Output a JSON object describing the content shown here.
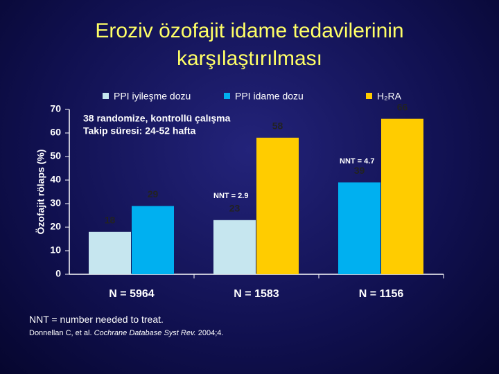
{
  "chart_data": {
    "type": "bar",
    "title_lines": [
      "Eroziv özofajit idame tedavilerinin",
      "karşılaştırılması"
    ],
    "y_label": "Özofajit rölaps (%)",
    "categories": [
      "N = 5964",
      "N = 1583",
      "N = 1156"
    ],
    "series": [
      {
        "name": "PPI iyileşme dozu",
        "color": "#c6e6ef",
        "values": [
          18,
          23,
          null
        ]
      },
      {
        "name": "PPI idame dozu",
        "color": "#00b0f0",
        "values": [
          29,
          null,
          39
        ]
      },
      {
        "name": "H₂RA",
        "color": "#ffcc00",
        "values": [
          null,
          58,
          66
        ]
      }
    ],
    "ylim": [
      0,
      70
    ],
    "yticks": [
      0,
      10,
      20,
      30,
      40,
      50,
      60,
      70
    ],
    "annotations": [
      "38 randomize, kontrollü çalışma",
      "Takip süresi: 24-52 hafta",
      "NNT = 2.9",
      "NNT = 4.7"
    ],
    "footnote": "NNT = number needed to treat.",
    "source": [
      "Donnellan C, et al.",
      "Cochrane Database Syst Rev.",
      "2004;4."
    ]
  }
}
